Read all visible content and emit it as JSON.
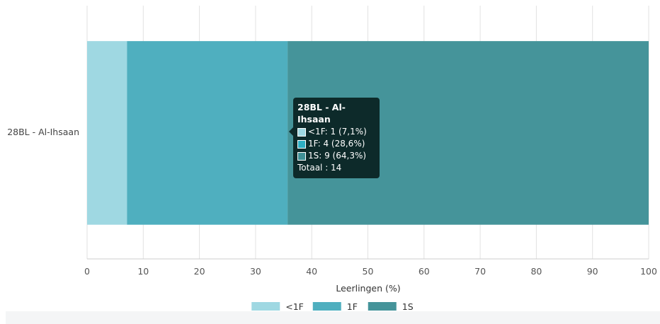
{
  "chart_data": {
    "type": "bar",
    "orientation": "horizontal",
    "stacked": true,
    "categories": [
      "28BL - Al-Ihsaan"
    ],
    "series": [
      {
        "name": "<1F",
        "values": [
          7.1
        ],
        "count": 1,
        "color": "#9fd8e2"
      },
      {
        "name": "1F",
        "values": [
          28.6
        ],
        "count": 4,
        "color": "#4fafbf"
      },
      {
        "name": "1S",
        "values": [
          64.3
        ],
        "count": 9,
        "color": "#45949a"
      }
    ],
    "xlabel": "Leerlingen (%)",
    "xlim": [
      0,
      100
    ],
    "xticks": [
      0,
      10,
      20,
      30,
      40,
      50,
      60,
      70,
      80,
      90,
      100
    ],
    "grid": true,
    "legend": "bottom-center"
  },
  "tooltip": {
    "title": "28BL - Al-Ihsaan",
    "rows": [
      {
        "text": "<1F: 1 (7,1%)",
        "color": "#9fd8e2"
      },
      {
        "text": "1F: 4 (28,6%)",
        "color": "#2eaec3"
      },
      {
        "text": "1S: 9 (64,3%)",
        "color": "#3f9096"
      }
    ],
    "total": "Totaal : 14"
  }
}
